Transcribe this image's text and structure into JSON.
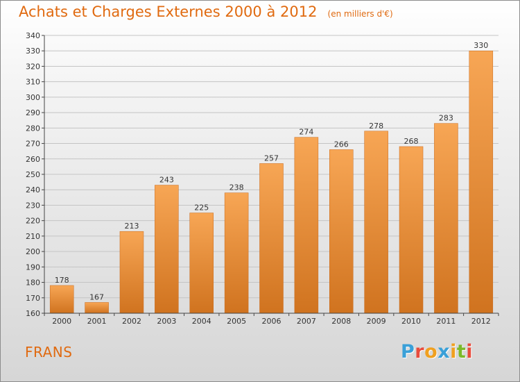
{
  "header": {
    "title": "Achats et Charges Externes 2000 à 2012",
    "unit": "(en milliers d'€)"
  },
  "footer": {
    "commune": "FRANS",
    "logo_text": "Proxiti",
    "logo_colors": [
      "#3aa0d8",
      "#e84c3d",
      "#f0a020",
      "#3aa0d8",
      "#f0a020",
      "#7ab929",
      "#e84c3d"
    ]
  },
  "colors": {
    "bar_top": "#f7a655",
    "bar_bottom": "#d0731f",
    "accent": "#e06a10"
  },
  "chart_data": {
    "type": "bar",
    "title": "Achats et Charges Externes 2000 à 2012",
    "categories": [
      "2000",
      "2001",
      "2002",
      "2003",
      "2004",
      "2005",
      "2006",
      "2007",
      "2008",
      "2009",
      "2010",
      "2011",
      "2012"
    ],
    "values": [
      178,
      167,
      213,
      243,
      225,
      238,
      257,
      274,
      266,
      278,
      268,
      283,
      330
    ],
    "ylim": [
      160,
      340
    ],
    "yticks": [
      160,
      170,
      180,
      190,
      200,
      210,
      220,
      230,
      240,
      250,
      260,
      270,
      280,
      290,
      300,
      310,
      320,
      330,
      340
    ],
    "grid": true,
    "legend": "none"
  }
}
